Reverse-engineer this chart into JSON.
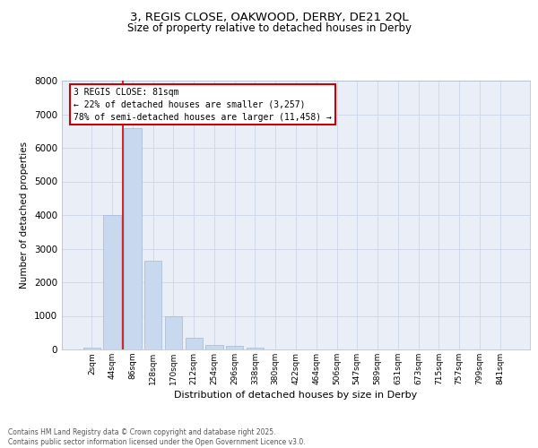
{
  "title_line1": "3, REGIS CLOSE, OAKWOOD, DERBY, DE21 2QL",
  "title_line2": "Size of property relative to detached houses in Derby",
  "xlabel": "Distribution of detached houses by size in Derby",
  "ylabel": "Number of detached properties",
  "categories": [
    "2sqm",
    "44sqm",
    "86sqm",
    "128sqm",
    "170sqm",
    "212sqm",
    "254sqm",
    "296sqm",
    "338sqm",
    "380sqm",
    "422sqm",
    "464sqm",
    "506sqm",
    "547sqm",
    "589sqm",
    "631sqm",
    "673sqm",
    "715sqm",
    "757sqm",
    "799sqm",
    "841sqm"
  ],
  "values": [
    60,
    4000,
    6600,
    2650,
    1000,
    360,
    130,
    120,
    60,
    0,
    0,
    0,
    0,
    0,
    0,
    0,
    0,
    0,
    0,
    0,
    0
  ],
  "bar_color": "#c8d8ee",
  "bar_edgecolor": "#a0b8d8",
  "vline_x": 1.5,
  "annotation_title": "3 REGIS CLOSE: 81sqm",
  "annotation_line1": "← 22% of detached houses are smaller (3,257)",
  "annotation_line2": "78% of semi-detached houses are larger (11,458) →",
  "annotation_box_facecolor": "#ffffff",
  "annotation_box_edgecolor": "#cc0000",
  "vline_color": "#cc0000",
  "grid_color": "#d0d8eb",
  "bg_color": "#eaeff7",
  "ylim": [
    0,
    8000
  ],
  "yticks": [
    0,
    1000,
    2000,
    3000,
    4000,
    5000,
    6000,
    7000,
    8000
  ],
  "footer_line1": "Contains HM Land Registry data © Crown copyright and database right 2025.",
  "footer_line2": "Contains public sector information licensed under the Open Government Licence v3.0."
}
